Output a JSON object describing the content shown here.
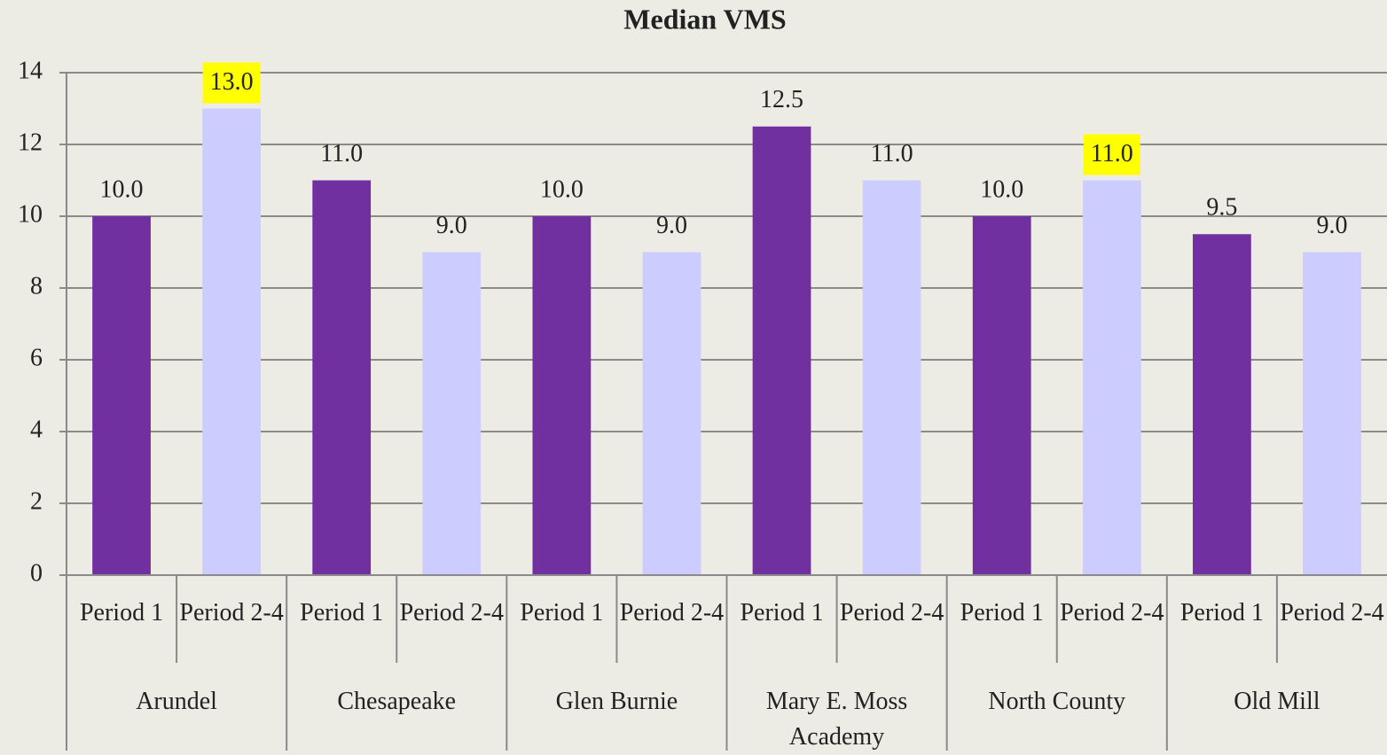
{
  "chart_data": {
    "type": "bar",
    "title": "Median VMS",
    "categories": [
      "Arundel",
      "Chesapeake",
      "Glen Burnie",
      "Mary E. Moss Academy",
      "North County",
      "Old Mill"
    ],
    "series": [
      {
        "name": "Period 1",
        "color": "#7030a0",
        "values": [
          10,
          11,
          10,
          12.5,
          10,
          9.5
        ],
        "value_labels": [
          "10.0",
          "11.0",
          "10.0",
          "12.5",
          "10.0",
          "9.5"
        ]
      },
      {
        "name": "Period 2-4",
        "color": "#ccccff",
        "values": [
          13,
          9,
          9,
          11,
          11,
          9
        ],
        "value_labels": [
          "13.0",
          "9.0",
          "9.0",
          "11.0",
          "11.0",
          "9.0"
        ]
      }
    ],
    "highlights": [
      {
        "series": 1,
        "category": 0
      },
      {
        "series": 1,
        "category": 4
      }
    ],
    "highlight_color": "#ffff00",
    "ylim": [
      0,
      14
    ],
    "yticks": [
      0,
      2,
      4,
      6,
      8,
      10,
      12,
      14
    ],
    "grid": true
  }
}
